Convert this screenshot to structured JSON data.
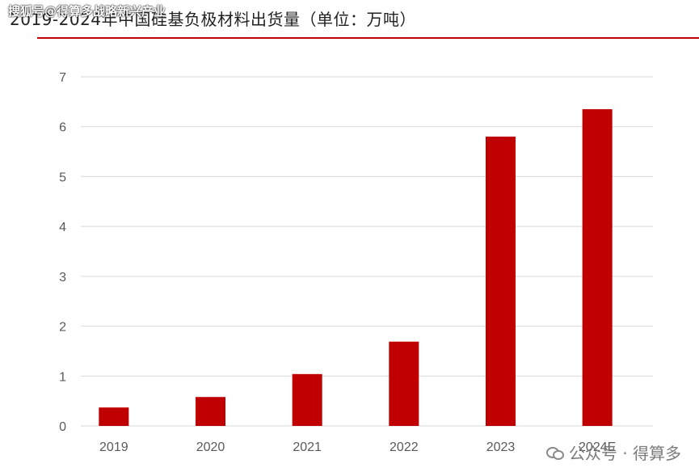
{
  "header": {
    "title": "2019-2024年中国硅基负极材料出货量（单位：万吨）",
    "watermark": "搜狐号@得算多战略新兴产业"
  },
  "footer": {
    "watermark": "公众号 · 得算多"
  },
  "colors": {
    "bar": "#c00000",
    "rule": "#c00000",
    "grid": "#d9d9d9",
    "tick_text": "#595959"
  },
  "chart_data": {
    "type": "bar",
    "title": "2019-2024年中国硅基负极材料出货量（单位：万吨）",
    "categories": [
      "2019",
      "2020",
      "2021",
      "2022",
      "2023",
      "2024E"
    ],
    "values": [
      0.37,
      0.58,
      1.04,
      1.69,
      5.8,
      6.35
    ],
    "ylim": [
      0,
      7
    ],
    "yticks": [
      "0",
      "1",
      "2",
      "3",
      "4",
      "5",
      "6",
      "7"
    ],
    "grid": true,
    "legend": "none"
  }
}
